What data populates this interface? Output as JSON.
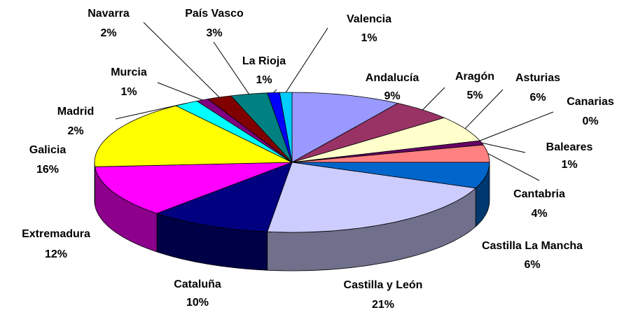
{
  "chart_data": {
    "type": "pie3d",
    "categories": [
      "Andalucía",
      "Aragón",
      "Asturias",
      "Canarias",
      "Baleares",
      "Cantabria",
      "Castilla La Mancha",
      "Castilla y León",
      "Cataluña",
      "Extremadura",
      "Galicia",
      "Madrid",
      "Murcia",
      "Navarra",
      "País Vasco",
      "La Rioja",
      "Valencia"
    ],
    "values": [
      9,
      5,
      6,
      0,
      1,
      4,
      6,
      21,
      10,
      12,
      16,
      2,
      1,
      2,
      3,
      1,
      1
    ],
    "value_labels": [
      "9%",
      "5%",
      "6%",
      "0%",
      "1%",
      "4%",
      "6%",
      "21%",
      "10%",
      "12%",
      "16%",
      "2%",
      "1%",
      "2%",
      "3%",
      "1%",
      "1%"
    ],
    "colors": [
      "#9999ff",
      "#993366",
      "#ffffcc",
      "#ccffff",
      "#660066",
      "#ff8080",
      "#0066cc",
      "#ccccff",
      "#000080",
      "#ff00ff",
      "#ffff00",
      "#00ffff",
      "#800080",
      "#800000",
      "#008080",
      "#0000ff",
      "#00ccff"
    ]
  }
}
